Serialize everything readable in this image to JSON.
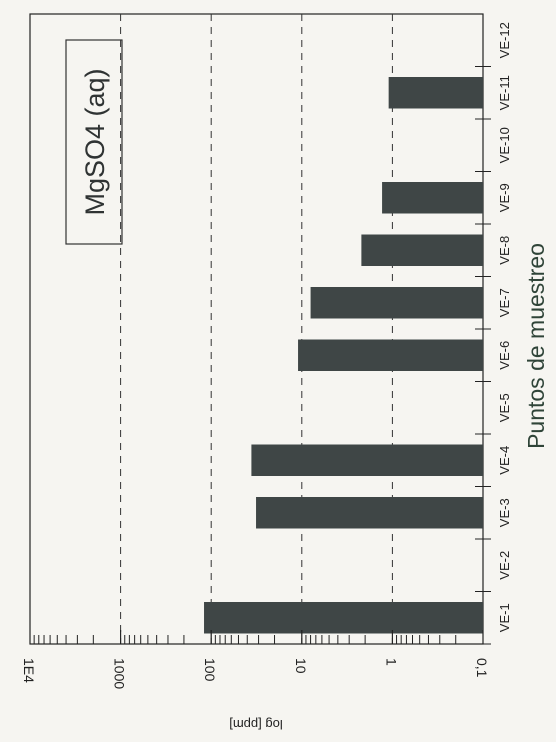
{
  "chart_data": {
    "type": "bar",
    "orientation": "horizontal",
    "annotation": "MgSO4 (aq)",
    "xlabel": "Puntos de muestreo",
    "ylabel": "log [ppm]",
    "yscale": "log",
    "ylim": [
      0.1,
      10000
    ],
    "grid": "dashed at 1, 10, 100, 1000",
    "value_tick_labels": [
      "0,1",
      "1",
      "10",
      "100",
      "1000",
      "1E4"
    ],
    "categories": [
      "VE-1",
      "VE-2",
      "VE-3",
      "VE-4",
      "VE-5",
      "VE-6",
      "VE-7",
      "VE-8",
      "VE-9",
      "VE-10",
      "VE-11",
      "VE-12"
    ],
    "values": [
      120,
      null,
      32,
      36,
      null,
      11,
      8,
      2.2,
      1.3,
      null,
      1.1,
      null
    ],
    "bar_color": "#3f4646"
  }
}
